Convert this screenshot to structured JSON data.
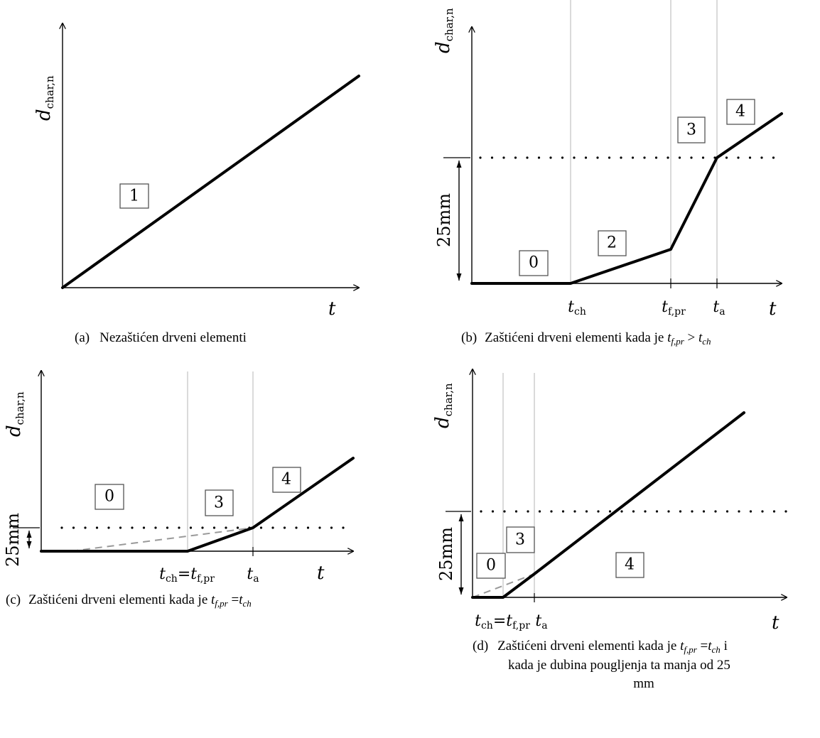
{
  "y_axis_label": {
    "main": "d",
    "sub": "char,n"
  },
  "x_axis_label": "t",
  "dimension_label": "25mm",
  "panels": {
    "a": {
      "phase_labels": [
        "1"
      ],
      "caption": {
        "letter": "(a)",
        "text": "Nezaštićen drveni elementi"
      }
    },
    "b": {
      "phase_labels": [
        "0",
        "2",
        "3",
        "4"
      ],
      "ticks": {
        "t_ch": {
          "main": "t",
          "sub": "ch"
        },
        "t_fpr": {
          "main": "t",
          "sub": "f,pr"
        },
        "t_a": {
          "main": "t",
          "sub": "a"
        }
      },
      "caption": {
        "letter": "(b)",
        "text": "Zaštićeni drveni elementi kada je ",
        "cond_a": "t",
        "cond_a_sub": "f,pr",
        "op": " > ",
        "cond_b": "t",
        "cond_b_sub": "ch"
      }
    },
    "c": {
      "phase_labels": [
        "0",
        "3",
        "4"
      ],
      "ticks": {
        "t_ch": {
          "main": "t",
          "sub": "ch",
          "eq": "=",
          "main2": "t",
          "sub2": "f,pr"
        },
        "t_a": {
          "main": "t",
          "sub": "a"
        }
      },
      "caption": {
        "letter": "(c)",
        "text": "Zaštićeni drveni elementi kada je ",
        "cond_a": "t",
        "cond_a_sub": "f,pr",
        "op": " =",
        "cond_b": "t",
        "cond_b_sub": "ch"
      }
    },
    "d": {
      "phase_labels": [
        "0",
        "3",
        "4"
      ],
      "ticks": {
        "t_ch": {
          "main": "t",
          "sub": "ch",
          "eq": "=",
          "main2": "t",
          "sub2": "f,pr"
        },
        "t_a": {
          "main": "t",
          "sub": "a"
        }
      },
      "caption": {
        "letter": "(d)",
        "line1_text": "Zaštićeni drveni elementi kada je ",
        "cond_a": "t",
        "cond_a_sub": "f,pr",
        "op": " =",
        "cond_b": "t",
        "cond_b_sub": "ch",
        "line1_end": " i",
        "line2": "kada je dubina pougljenja ta manja od 25",
        "line3": "mm"
      }
    }
  }
}
